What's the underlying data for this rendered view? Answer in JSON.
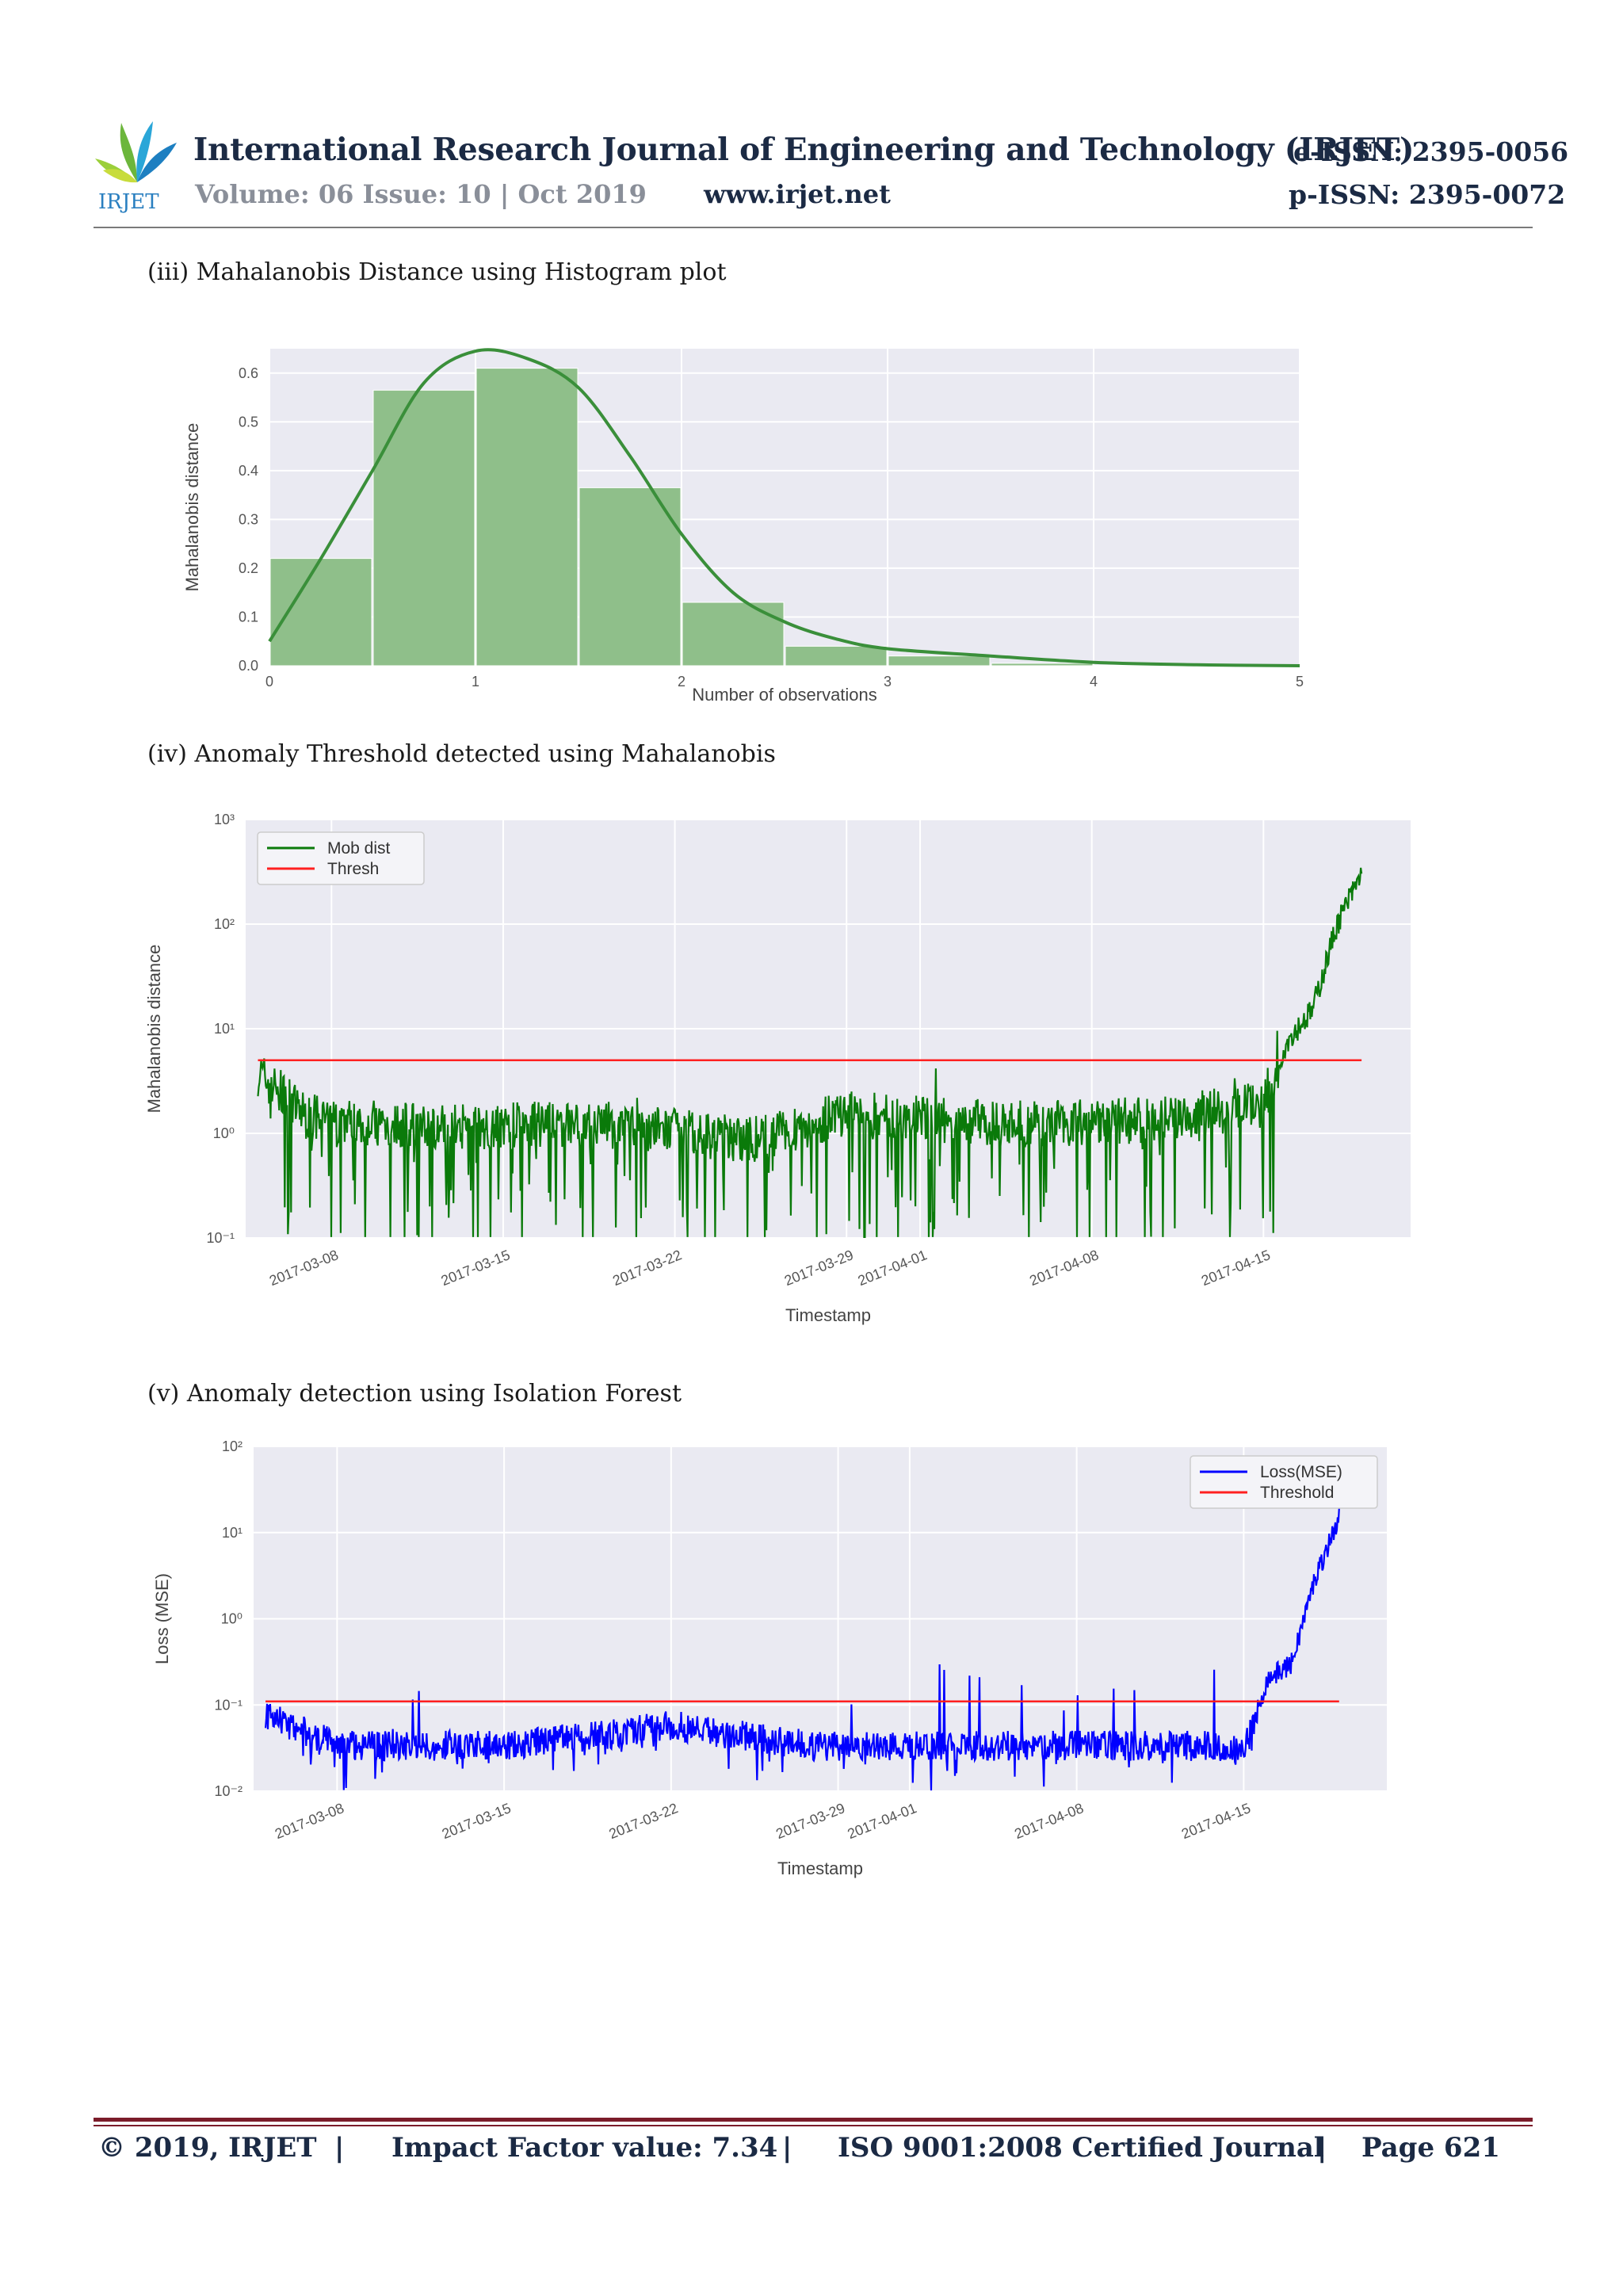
{
  "header": {
    "logo_text": "IRJET",
    "journal_title": "International Research Journal of Engineering and Technology (IRJET)",
    "e_issn": "e-ISSN: 2395-0056",
    "volume": "Volume: 06 Issue: 10 | Oct 2019",
    "website": "www.irjet.net",
    "p_issn": "p-ISSN: 2395-0072"
  },
  "captions": {
    "fig_iii": "(iii) Mahalanobis Distance using Histogram plot",
    "fig_iv": "(iv) Anomaly Threshold detected using Mahalanobis",
    "fig_v": "(v)  Anomaly detection using Isolation Forest"
  },
  "footer": {
    "copyright": "© 2019, IRJET",
    "sep": "|",
    "impact": "Impact Factor value: 7.34",
    "iso": "ISO 9001:2008 Certified Journal",
    "page": "Page 621"
  },
  "colors": {
    "histogram_bar": "#8fbf8a",
    "kde_line": "#3a8f3a",
    "mahal_series": "#0a7a0a",
    "isoforest_series": "#0000ff",
    "threshold": "#ff2020",
    "plot_bg": "#eaeaf2"
  },
  "chart_data": [
    {
      "type": "bar",
      "xlabel": "Number of observations",
      "ylabel": "Mahalanobis distance",
      "xlim": [
        0,
        5
      ],
      "ylim": [
        0,
        0.65
      ],
      "xticks": [
        "0",
        "1",
        "2",
        "3",
        "4",
        "5"
      ],
      "yticks": [
        "0.0",
        "0.1",
        "0.2",
        "0.3",
        "0.4",
        "0.5",
        "0.6"
      ],
      "bins": [
        {
          "x0": 0.0,
          "x1": 0.5,
          "value": 0.22
        },
        {
          "x0": 0.5,
          "x1": 1.0,
          "value": 0.565
        },
        {
          "x0": 1.0,
          "x1": 1.5,
          "value": 0.61
        },
        {
          "x0": 1.5,
          "x1": 2.0,
          "value": 0.365
        },
        {
          "x0": 2.0,
          "x1": 2.5,
          "value": 0.13
        },
        {
          "x0": 2.5,
          "x1": 3.0,
          "value": 0.04
        },
        {
          "x0": 3.0,
          "x1": 3.5,
          "value": 0.02
        },
        {
          "x0": 3.5,
          "x1": 4.0,
          "value": 0.005
        }
      ],
      "kde": {
        "x": [
          0,
          0.25,
          0.5,
          0.75,
          1.0,
          1.25,
          1.5,
          1.75,
          2.0,
          2.25,
          2.5,
          2.75,
          3.0,
          3.5,
          4.0,
          4.5,
          5.0
        ],
        "y": [
          0.05,
          0.22,
          0.4,
          0.58,
          0.645,
          0.63,
          0.57,
          0.43,
          0.27,
          0.15,
          0.09,
          0.055,
          0.035,
          0.02,
          0.007,
          0.002,
          0.0
        ]
      },
      "grid": true
    },
    {
      "type": "line",
      "xlabel": "Timestamp",
      "ylabel": "Mahalanobis distance",
      "yscale": "log",
      "ylim": [
        0.1,
        1000
      ],
      "yticks": [
        "10⁻¹",
        "10⁰",
        "10¹",
        "10²",
        "10³"
      ],
      "xticks": [
        "2017-03-08",
        "2017-03-15",
        "2017-03-22",
        "2017-03-29",
        "2017-04-01",
        "2017-04-08",
        "2017-04-15"
      ],
      "x_range": [
        "2017-03-05",
        "2017-04-19"
      ],
      "legend": {
        "position": "top-left",
        "entries": [
          "Mob dist",
          "Thresh"
        ]
      },
      "series": [
        {
          "name": "Mob dist",
          "color": "#0a7a0a",
          "x": [
            "2017-03-05",
            "2017-03-07",
            "2017-03-12",
            "2017-03-18",
            "2017-03-22",
            "2017-03-25",
            "2017-03-29",
            "2017-04-05",
            "2017-04-10",
            "2017-04-14",
            "2017-04-15",
            "2017-04-16",
            "2017-04-17",
            "2017-04-18",
            "2017-04-19"
          ],
          "y": [
            4.0,
            1.5,
            1.2,
            1.3,
            1.1,
            0.9,
            1.6,
            1.3,
            1.4,
            1.8,
            2.0,
            8.0,
            15.0,
            100.0,
            300.0
          ]
        },
        {
          "name": "Thresh",
          "color": "#ff2020",
          "x": [
            "2017-03-05",
            "2017-04-19"
          ],
          "y": [
            5.0,
            5.0
          ]
        }
      ],
      "grid": true
    },
    {
      "type": "line",
      "xlabel": "Timestamp",
      "ylabel": "Loss (MSE)",
      "yscale": "log",
      "ylim": [
        0.01,
        100
      ],
      "yticks": [
        "10⁻²",
        "10⁻¹",
        "10⁰",
        "10¹",
        "10²"
      ],
      "xticks": [
        "2017-03-08",
        "2017-03-15",
        "2017-03-22",
        "2017-03-29",
        "2017-04-01",
        "2017-04-08",
        "2017-04-15"
      ],
      "x_range": [
        "2017-03-05",
        "2017-04-19"
      ],
      "legend": {
        "position": "top-right",
        "entries": [
          "Loss(MSE)",
          "Threshold"
        ]
      },
      "series": [
        {
          "name": "Loss(MSE)",
          "color": "#0000ff",
          "x": [
            "2017-03-05",
            "2017-03-08",
            "2017-03-15",
            "2017-03-20",
            "2017-03-22",
            "2017-03-28",
            "2017-04-05",
            "2017-04-14",
            "2017-04-15",
            "2017-04-16",
            "2017-04-17",
            "2017-04-18",
            "2017-04-19"
          ],
          "y": [
            0.08,
            0.035,
            0.035,
            0.05,
            0.06,
            0.035,
            0.035,
            0.035,
            0.03,
            0.2,
            0.3,
            3.0,
            15.0
          ]
        },
        {
          "name": "Threshold",
          "color": "#ff2020",
          "x": [
            "2017-03-05",
            "2017-04-19"
          ],
          "y": [
            0.11,
            0.11
          ]
        }
      ],
      "grid": true
    }
  ]
}
